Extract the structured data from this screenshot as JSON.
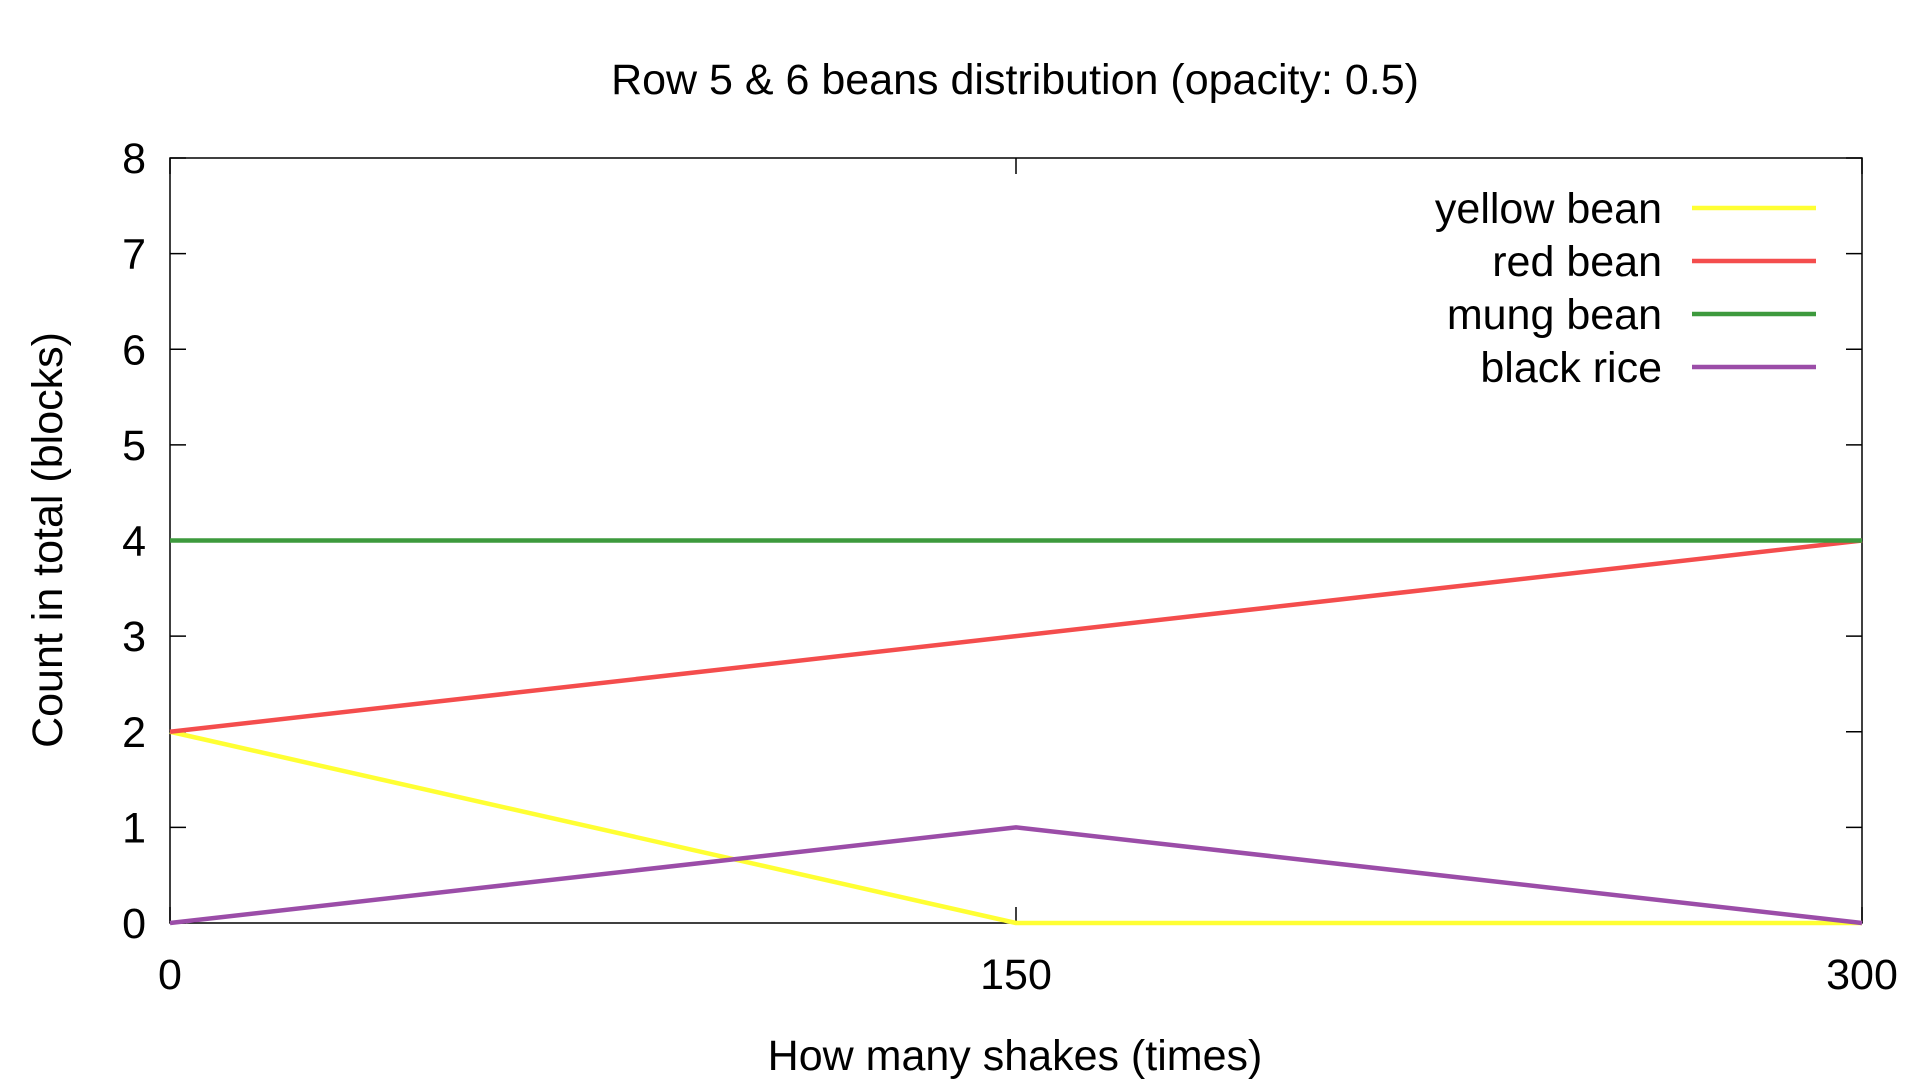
{
  "chart_data": {
    "type": "line",
    "title": "Row 5 & 6 beans distribution (opacity: 0.5)",
    "xlabel": "How many shakes (times)",
    "ylabel": "Count in total (blocks)",
    "x": [
      0,
      150,
      300
    ],
    "x_ticks": [
      0,
      150,
      300
    ],
    "x_tick_labels": [
      "0",
      "150",
      "300"
    ],
    "y_ticks": [
      0,
      1,
      2,
      3,
      4,
      5,
      6,
      7,
      8
    ],
    "y_tick_labels": [
      "0",
      "1",
      "2",
      "3",
      "4",
      "5",
      "6",
      "7",
      "8"
    ],
    "xlim": [
      0,
      300
    ],
    "ylim": [
      0,
      8
    ],
    "grid": false,
    "legend_position": "top-right",
    "series": [
      {
        "name": "yellow bean",
        "color": "#ffff33",
        "values": [
          2,
          0,
          0
        ]
      },
      {
        "name": "red bean",
        "color": "#f44d4d",
        "values": [
          2,
          3,
          4
        ]
      },
      {
        "name": "mung bean",
        "color": "#3d9a3d",
        "values": [
          4,
          4,
          4
        ]
      },
      {
        "name": "black rice",
        "color": "#9b4da8",
        "values": [
          0,
          1,
          0
        ]
      }
    ]
  }
}
